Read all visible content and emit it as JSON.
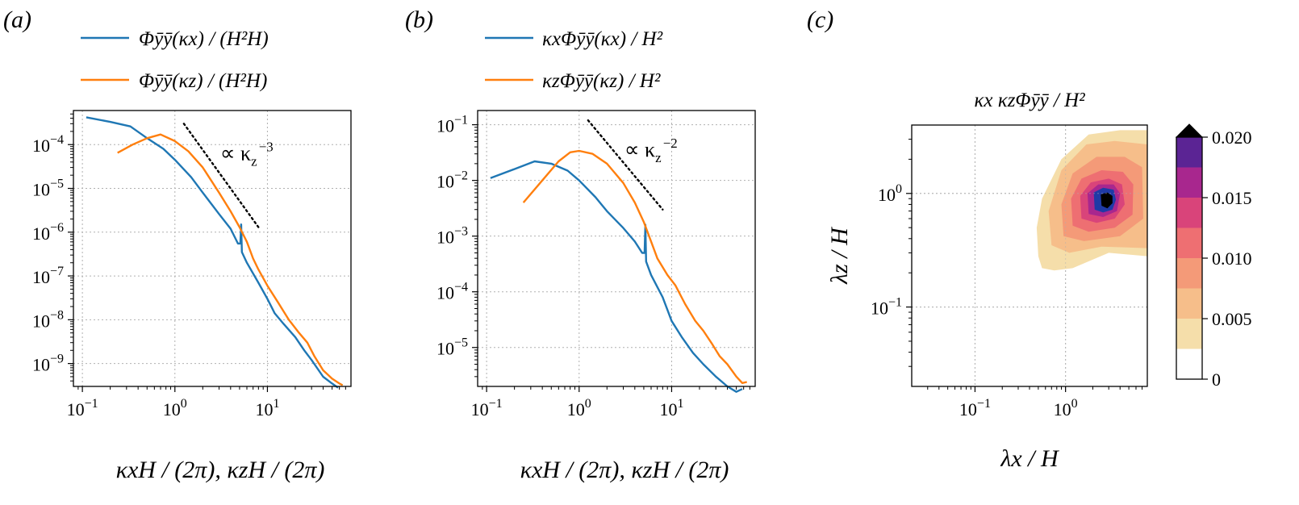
{
  "chart_data": [
    {
      "type": "line",
      "panel_label": "(a)",
      "xlabel": "κxH / (2π), κzH / (2π)",
      "x_log": true,
      "y_log": true,
      "xlim": [
        0.08,
        80
      ],
      "ylim": [
        3e-10,
        0.0006
      ],
      "x_ticks": [
        {
          "value": 0.1,
          "base": "10",
          "exp": "−1"
        },
        {
          "value": 1,
          "base": "10",
          "exp": "0"
        },
        {
          "value": 10,
          "base": "10",
          "exp": "1"
        }
      ],
      "y_ticks": [
        {
          "value": 1e-09,
          "base": "10",
          "exp": "−9"
        },
        {
          "value": 1e-08,
          "base": "10",
          "exp": "−8"
        },
        {
          "value": 1e-07,
          "base": "10",
          "exp": "−7"
        },
        {
          "value": 1e-06,
          "base": "10",
          "exp": "−6"
        },
        {
          "value": 1e-05,
          "base": "10",
          "exp": "−5"
        },
        {
          "value": 0.0001,
          "base": "10",
          "exp": "−4"
        }
      ],
      "grid": true,
      "legend_position": "top",
      "series": [
        {
          "name": "Φȳȳ(κx) / (H²H)",
          "color": "#1f77b4",
          "points": [
            [
              0.11,
              0.00042
            ],
            [
              0.2,
              0.00033
            ],
            [
              0.33,
              0.00026
            ],
            [
              0.5,
              0.00014
            ],
            [
              0.75,
              8e-05
            ],
            [
              1,
              4.5e-05
            ],
            [
              1.5,
              1.8e-05
            ],
            [
              2,
              8e-06
            ],
            [
              3,
              2.6e-06
            ],
            [
              4,
              1.2e-06
            ],
            [
              4.8,
              5.5e-07
            ],
            [
              5.1,
              5.5e-07
            ],
            [
              5.2,
              1.5e-06
            ],
            [
              5.3,
              3.5e-07
            ],
            [
              6,
              2e-07
            ],
            [
              8,
              7e-08
            ],
            [
              10,
              3e-08
            ],
            [
              12,
              1.4e-08
            ],
            [
              15,
              8e-09
            ],
            [
              20,
              4e-09
            ],
            [
              25,
              2e-09
            ],
            [
              30,
              1.2e-09
            ],
            [
              40,
              5e-10
            ],
            [
              50,
              3.5e-10
            ],
            [
              58,
              2.8e-10
            ]
          ]
        },
        {
          "name": "Φȳȳ(κz) / (H²H)",
          "color": "#ff7f0e",
          "points": [
            [
              0.24,
              6.5e-05
            ],
            [
              0.35,
              0.0001
            ],
            [
              0.5,
              0.00014
            ],
            [
              0.7,
              0.00017
            ],
            [
              1,
              0.00012
            ],
            [
              1.4,
              7e-05
            ],
            [
              2,
              3e-05
            ],
            [
              3,
              8e-06
            ],
            [
              4,
              3e-06
            ],
            [
              5,
              1.3e-06
            ],
            [
              6,
              6e-07
            ],
            [
              7,
              2.5e-07
            ],
            [
              8,
              1.4e-07
            ],
            [
              10,
              6e-08
            ],
            [
              13,
              2.5e-08
            ],
            [
              17,
              1e-08
            ],
            [
              22,
              5e-09
            ],
            [
              27,
              3e-09
            ],
            [
              32,
              1.5e-09
            ],
            [
              40,
              7e-10
            ],
            [
              50,
              4.5e-10
            ],
            [
              60,
              3.5e-10
            ],
            [
              65,
              3.2e-10
            ]
          ]
        }
      ],
      "reference_line": {
        "label_text": "∝ κ",
        "label_sub": "z",
        "label_sup": "−3",
        "x": [
          1.25,
          8
        ],
        "y": [
          0.0003,
          1.3e-06
        ]
      }
    },
    {
      "type": "line",
      "panel_label": "(b)",
      "xlabel": "κxH / (2π), κzH / (2π)",
      "x_log": true,
      "y_log": true,
      "xlim": [
        0.08,
        80
      ],
      "ylim": [
        2e-06,
        0.18
      ],
      "x_ticks": [
        {
          "value": 0.1,
          "base": "10",
          "exp": "−1"
        },
        {
          "value": 1,
          "base": "10",
          "exp": "0"
        },
        {
          "value": 10,
          "base": "10",
          "exp": "1"
        }
      ],
      "y_ticks": [
        {
          "value": 1e-05,
          "base": "10",
          "exp": "−5"
        },
        {
          "value": 0.0001,
          "base": "10",
          "exp": "−4"
        },
        {
          "value": 0.001,
          "base": "10",
          "exp": "−3"
        },
        {
          "value": 0.01,
          "base": "10",
          "exp": "−2"
        },
        {
          "value": 0.1,
          "base": "10",
          "exp": "−1"
        }
      ],
      "grid": true,
      "legend_position": "top",
      "series": [
        {
          "name": "κxΦȳȳ(κx) / H²",
          "color": "#1f77b4",
          "points": [
            [
              0.11,
              0.011
            ],
            [
              0.2,
              0.016
            ],
            [
              0.33,
              0.022
            ],
            [
              0.5,
              0.02
            ],
            [
              0.75,
              0.015
            ],
            [
              1,
              0.01
            ],
            [
              1.5,
              0.005
            ],
            [
              2,
              0.0028
            ],
            [
              3,
              0.0014
            ],
            [
              4,
              0.0008
            ],
            [
              4.8,
              0.0005
            ],
            [
              5.1,
              0.0005
            ],
            [
              5.2,
              0.0016
            ],
            [
              5.3,
              0.00035
            ],
            [
              6,
              0.0002
            ],
            [
              8,
              8e-05
            ],
            [
              10,
              3e-05
            ],
            [
              13,
              1.5e-05
            ],
            [
              17,
              8e-06
            ],
            [
              22,
              5e-06
            ],
            [
              30,
              3e-06
            ],
            [
              40,
              2e-06
            ],
            [
              50,
              1.6e-06
            ],
            [
              58,
              1.8e-06
            ]
          ]
        },
        {
          "name": "κzΦȳȳ(κz) / H²",
          "color": "#ff7f0e",
          "points": [
            [
              0.25,
              0.004
            ],
            [
              0.4,
              0.01
            ],
            [
              0.6,
              0.022
            ],
            [
              0.8,
              0.032
            ],
            [
              1,
              0.034
            ],
            [
              1.4,
              0.03
            ],
            [
              2,
              0.02
            ],
            [
              3,
              0.009
            ],
            [
              4,
              0.004
            ],
            [
              5,
              0.0018
            ],
            [
              6,
              0.0008
            ],
            [
              7,
              0.0004
            ],
            [
              9,
              0.0002
            ],
            [
              11,
              0.00013
            ],
            [
              14,
              6e-05
            ],
            [
              18,
              3e-05
            ],
            [
              22,
              2e-05
            ],
            [
              27,
              1.2e-05
            ],
            [
              33,
              7e-06
            ],
            [
              40,
              5e-06
            ],
            [
              50,
              3e-06
            ],
            [
              58,
              2.3e-06
            ],
            [
              65,
              2.4e-06
            ]
          ]
        }
      ],
      "reference_line": {
        "label_text": "∝ κ",
        "label_sub": "z",
        "label_sup": "−2",
        "x": [
          1.25,
          8
        ],
        "y": [
          0.12,
          0.003
        ]
      }
    },
    {
      "type": "heatmap",
      "panel_label": "(c)",
      "title": "κx κzΦȳȳ / H²",
      "xlabel": "λx / H",
      "ylabel": "λz / H",
      "x_log": true,
      "y_log": true,
      "xlim": [
        0.02,
        8
      ],
      "ylim": [
        0.02,
        4
      ],
      "x_ticks": [
        {
          "value": 0.1,
          "base": "10",
          "exp": "−1"
        },
        {
          "value": 1,
          "base": "10",
          "exp": "0"
        }
      ],
      "y_ticks": [
        {
          "value": 0.1,
          "base": "10",
          "exp": "−1"
        },
        {
          "value": 1,
          "base": "10",
          "exp": "0"
        }
      ],
      "grid": true,
      "peak": {
        "x": 3,
        "y": 0.9,
        "value": 0.0215
      },
      "colorbar": {
        "ticks": [
          {
            "value": 0,
            "label": "0"
          },
          {
            "value": 0.005,
            "label": "0.005"
          },
          {
            "value": 0.01,
            "label": "0.010"
          },
          {
            "value": 0.015,
            "label": "0.015"
          },
          {
            "value": 0.02,
            "label": "0.020"
          }
        ],
        "levels": [
          0,
          0.0025,
          0.005,
          0.0075,
          0.01,
          0.0125,
          0.015,
          0.0175,
          0.02
        ],
        "colors": [
          "#ffffff",
          "#f5deaa",
          "#f6be8a",
          "#f49a78",
          "#ee6f72",
          "#d9447a",
          "#a8278e",
          "#5b2494",
          "#1f3aa6"
        ],
        "extend_color": "#000000"
      },
      "contours": [
        {
          "level_index": 1,
          "color": "#f5deaa",
          "path": [
            [
              0.5,
              0.28
            ],
            [
              0.48,
              0.5
            ],
            [
              0.55,
              0.9
            ],
            [
              0.9,
              2.0
            ],
            [
              1.8,
              3.3
            ],
            [
              4,
              3.6
            ],
            [
              8,
              3.6
            ],
            [
              8,
              0.28
            ],
            [
              3,
              0.3
            ],
            [
              1.2,
              0.22
            ],
            [
              0.75,
              0.21
            ],
            [
              0.55,
              0.22
            ]
          ]
        },
        {
          "level_index": 2,
          "color": "#f6be8a",
          "path": [
            [
              0.7,
              0.35
            ],
            [
              0.65,
              0.7
            ],
            [
              0.9,
              1.6
            ],
            [
              1.7,
              2.7
            ],
            [
              3.5,
              2.9
            ],
            [
              8,
              2.7
            ],
            [
              8,
              0.33
            ],
            [
              2.5,
              0.34
            ],
            [
              1.1,
              0.3
            ]
          ]
        },
        {
          "level_index": 3,
          "color": "#f49a78",
          "path": [
            [
              0.95,
              0.42
            ],
            [
              0.9,
              0.8
            ],
            [
              1.2,
              1.5
            ],
            [
              2.2,
              2.1
            ],
            [
              4.5,
              2.1
            ],
            [
              7,
              1.7
            ],
            [
              7.2,
              0.6
            ],
            [
              4,
              0.42
            ],
            [
              1.6,
              0.38
            ]
          ]
        },
        {
          "level_index": 4,
          "color": "#ee6f72",
          "path": [
            [
              1.2,
              0.52
            ],
            [
              1.15,
              0.9
            ],
            [
              1.5,
              1.35
            ],
            [
              2.5,
              1.6
            ],
            [
              4.3,
              1.55
            ],
            [
              5.6,
              1.2
            ],
            [
              5.5,
              0.65
            ],
            [
              3.5,
              0.5
            ],
            [
              1.8,
              0.46
            ]
          ]
        },
        {
          "level_index": 5,
          "color": "#d9447a",
          "path": [
            [
              1.5,
              0.6
            ],
            [
              1.45,
              0.95
            ],
            [
              1.9,
              1.25
            ],
            [
              3,
              1.35
            ],
            [
              4.2,
              1.2
            ],
            [
              4.5,
              0.8
            ],
            [
              3.5,
              0.6
            ],
            [
              2.2,
              0.55
            ]
          ]
        },
        {
          "level_index": 6,
          "color": "#a8278e",
          "path": [
            [
              1.8,
              0.66
            ],
            [
              1.75,
              1.0
            ],
            [
              2.3,
              1.2
            ],
            [
              3.4,
              1.2
            ],
            [
              4.0,
              1.0
            ],
            [
              3.7,
              0.7
            ],
            [
              2.6,
              0.62
            ]
          ]
        },
        {
          "level_index": 8,
          "color": "#1f3aa6",
          "path": [
            [
              2.1,
              0.72
            ],
            [
              2.05,
              1.02
            ],
            [
              2.6,
              1.12
            ],
            [
              3.4,
              1.08
            ],
            [
              3.6,
              0.88
            ],
            [
              3.3,
              0.72
            ],
            [
              2.6,
              0.68
            ]
          ]
        },
        {
          "level_index": 9,
          "color": "#000000",
          "path": [
            [
              2.5,
              0.78
            ],
            [
              2.45,
              0.98
            ],
            [
              2.9,
              1.02
            ],
            [
              3.3,
              0.95
            ],
            [
              3.3,
              0.82
            ],
            [
              2.9,
              0.74
            ]
          ]
        }
      ]
    }
  ]
}
